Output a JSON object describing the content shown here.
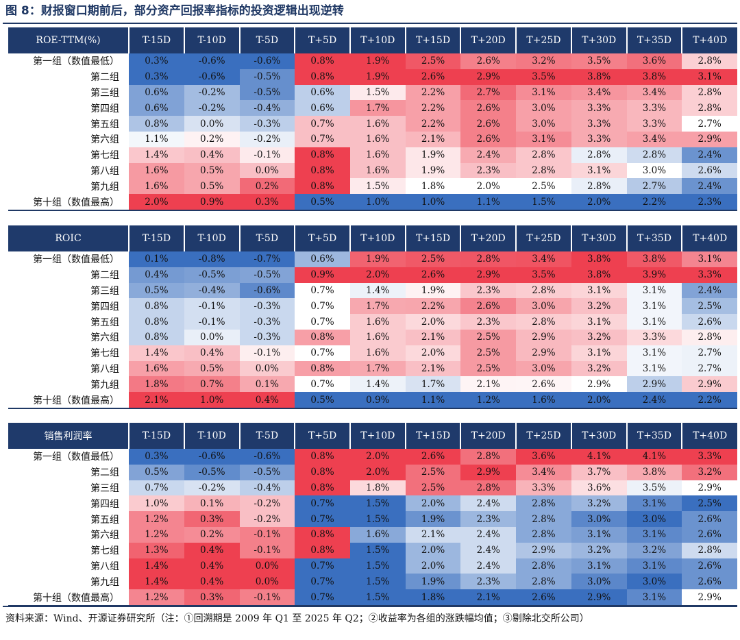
{
  "title": "图 8：财报窗口期前后，部分资产回报率指标的投资逻辑出现逆转",
  "source": "资料来源：Wind、开源证券研究所（注：①回溯期是 2009 年 Q1 至 2025 年 Q2；②收益率为各组的涨跌幅均值；③剔除北交所公司）",
  "colors": {
    "header_bg": "#1f3a6b",
    "low": "#3a6fbf",
    "mid": "#ffffff",
    "high": "#ee4050"
  },
  "chart_data": [
    {
      "type": "heatmap",
      "title": "ROE-TTM(%)",
      "columns": [
        "T-15D",
        "T-10D",
        "T-5D",
        "T+5D",
        "T+10D",
        "T+15D",
        "T+20D",
        "T+25D",
        "T+30D",
        "T+35D",
        "T+40D"
      ],
      "rows": [
        "第一组（数值最低）",
        "第二组",
        "第三组",
        "第四组",
        "第五组",
        "第六组",
        "第七组",
        "第八组",
        "第九组",
        "第十组（数值最高）"
      ],
      "values": [
        [
          0.3,
          -0.6,
          -0.6,
          0.8,
          1.9,
          2.5,
          2.6,
          3.2,
          3.5,
          3.6,
          2.8
        ],
        [
          0.3,
          -0.6,
          -0.5,
          0.8,
          1.9,
          2.6,
          2.9,
          3.5,
          3.8,
          3.8,
          3.1
        ],
        [
          0.6,
          -0.2,
          -0.5,
          0.6,
          1.5,
          2.2,
          2.7,
          3.1,
          3.4,
          3.4,
          2.8
        ],
        [
          0.6,
          -0.2,
          -0.4,
          0.6,
          1.7,
          2.2,
          2.6,
          3.0,
          3.3,
          3.3,
          2.8
        ],
        [
          0.8,
          0.0,
          -0.3,
          0.7,
          1.6,
          2.2,
          2.6,
          3.0,
          3.3,
          3.3,
          2.7
        ],
        [
          1.1,
          0.2,
          -0.2,
          0.7,
          1.6,
          2.1,
          2.6,
          3.1,
          3.3,
          3.4,
          2.9
        ],
        [
          1.4,
          0.4,
          -0.1,
          0.8,
          1.6,
          1.9,
          2.4,
          2.8,
          2.8,
          2.8,
          2.4
        ],
        [
          1.6,
          0.5,
          0.0,
          0.8,
          1.6,
          1.9,
          2.3,
          2.8,
          3.1,
          3.0,
          2.6
        ],
        [
          1.6,
          0.5,
          0.2,
          0.8,
          1.5,
          1.8,
          2.0,
          2.5,
          2.8,
          2.7,
          2.4
        ],
        [
          2.0,
          0.9,
          0.3,
          0.5,
          1.0,
          1.0,
          1.1,
          1.5,
          2.0,
          2.2,
          2.3
        ]
      ],
      "unit": "%"
    },
    {
      "type": "heatmap",
      "title": "ROIC",
      "columns": [
        "T-15D",
        "T-10D",
        "T-5D",
        "T+5D",
        "T+10D",
        "T+15D",
        "T+20D",
        "T+25D",
        "T+30D",
        "T+35D",
        "T+40D"
      ],
      "rows": [
        "第一组（数值最低）",
        "第二组",
        "第三组",
        "第四组",
        "第五组",
        "第六组",
        "第七组",
        "第八组",
        "第九组",
        "第十组（数值最高）"
      ],
      "values": [
        [
          0.1,
          -0.8,
          -0.7,
          0.6,
          1.9,
          2.5,
          2.8,
          3.4,
          3.8,
          3.8,
          3.1
        ],
        [
          0.4,
          -0.5,
          -0.5,
          0.9,
          2.0,
          2.6,
          2.9,
          3.5,
          3.8,
          3.9,
          3.3
        ],
        [
          0.5,
          -0.4,
          -0.6,
          0.7,
          1.4,
          1.9,
          2.3,
          2.8,
          3.1,
          3.1,
          2.4
        ],
        [
          0.8,
          -0.1,
          -0.3,
          0.7,
          1.7,
          2.2,
          2.6,
          3.0,
          3.2,
          3.1,
          2.5
        ],
        [
          0.8,
          -0.1,
          -0.3,
          0.7,
          1.6,
          2.0,
          2.3,
          2.8,
          3.1,
          3.1,
          2.6
        ],
        [
          0.8,
          0.0,
          -0.3,
          0.8,
          1.6,
          2.1,
          2.5,
          2.9,
          3.2,
          3.3,
          2.8
        ],
        [
          1.4,
          0.4,
          -0.1,
          0.7,
          1.6,
          2.0,
          2.5,
          2.9,
          3.1,
          3.1,
          2.7
        ],
        [
          1.6,
          0.5,
          0.0,
          0.8,
          1.7,
          2.1,
          2.5,
          3.0,
          3.2,
          3.1,
          2.7
        ],
        [
          1.8,
          0.7,
          0.1,
          0.7,
          1.4,
          1.7,
          2.1,
          2.6,
          2.9,
          2.9,
          2.9
        ],
        [
          2.1,
          1.0,
          0.4,
          0.5,
          0.9,
          1.1,
          1.2,
          1.6,
          2.0,
          2.4,
          2.2
        ]
      ],
      "unit": "%"
    },
    {
      "type": "heatmap",
      "title": "销售利润率",
      "columns": [
        "T-15D",
        "T-10D",
        "T-5D",
        "T+5D",
        "T+10D",
        "T+15D",
        "T+20D",
        "T+25D",
        "T+30D",
        "T+35D",
        "T+40D"
      ],
      "rows": [
        "第一组（数值最低）",
        "第二组",
        "第三组",
        "第四组",
        "第五组",
        "第六组",
        "第七组",
        "第八组",
        "第九组",
        "第十组（数值最高）"
      ],
      "values": [
        [
          0.3,
          -0.6,
          -0.6,
          0.8,
          2.0,
          2.6,
          2.8,
          3.6,
          4.1,
          4.1,
          3.3
        ],
        [
          0.5,
          -0.5,
          -0.5,
          0.8,
          2.0,
          2.5,
          2.9,
          3.4,
          3.7,
          3.8,
          3.2
        ],
        [
          0.7,
          -0.2,
          -0.4,
          0.8,
          1.8,
          2.5,
          2.8,
          3.3,
          3.6,
          3.5,
          2.9
        ],
        [
          1.0,
          0.1,
          -0.2,
          0.7,
          1.5,
          2.0,
          2.4,
          2.8,
          3.2,
          3.1,
          2.5
        ],
        [
          1.2,
          0.3,
          -0.2,
          0.7,
          1.5,
          1.9,
          2.3,
          2.8,
          3.0,
          3.0,
          2.6
        ],
        [
          1.2,
          0.2,
          -0.1,
          0.8,
          1.6,
          2.1,
          2.4,
          2.8,
          3.1,
          3.1,
          2.6
        ],
        [
          1.3,
          0.4,
          -0.1,
          0.8,
          1.5,
          2.0,
          2.4,
          2.9,
          3.2,
          3.2,
          2.8
        ],
        [
          1.4,
          0.4,
          0.0,
          0.7,
          1.5,
          2.0,
          2.4,
          2.8,
          3.1,
          3.1,
          2.6
        ],
        [
          1.4,
          0.4,
          0.0,
          0.7,
          1.5,
          1.9,
          2.3,
          2.8,
          3.0,
          3.0,
          2.6
        ],
        [
          1.2,
          0.3,
          -0.1,
          0.7,
          1.5,
          1.8,
          2.1,
          2.6,
          2.9,
          3.1,
          2.9
        ]
      ],
      "unit": "%"
    }
  ]
}
